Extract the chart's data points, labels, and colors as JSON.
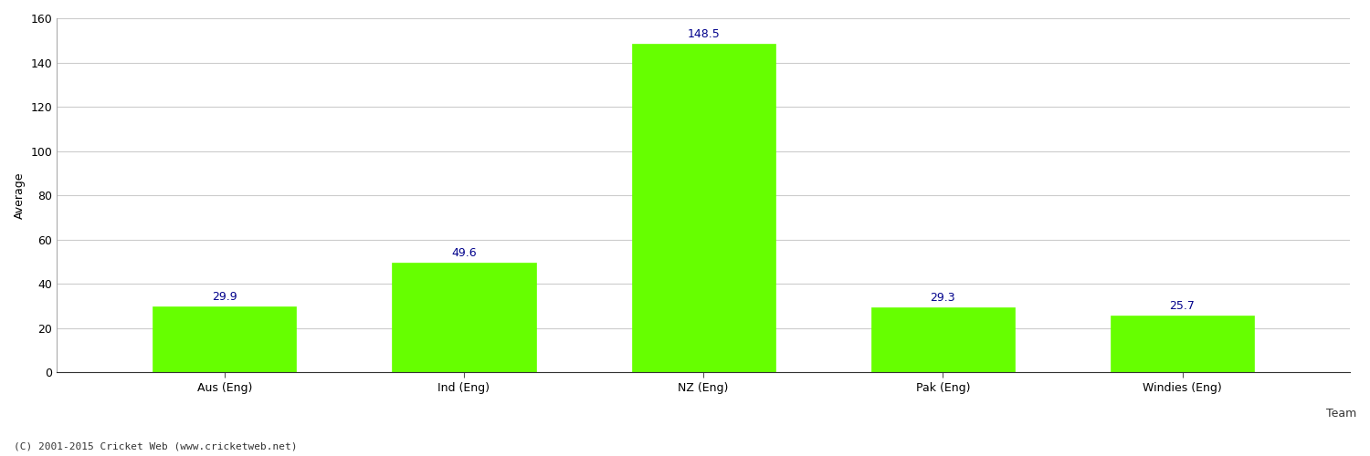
{
  "categories": [
    "Aus (Eng)",
    "Ind (Eng)",
    "NZ (Eng)",
    "Pak (Eng)",
    "Windies (Eng)"
  ],
  "values": [
    29.9,
    49.6,
    148.5,
    29.3,
    25.7
  ],
  "bar_color": "#66ff00",
  "bar_edge_color": "#66ff00",
  "label_color": "#00008B",
  "ylabel": "Average",
  "xlabel_label": "Team",
  "ylim": [
    0,
    160
  ],
  "yticks": [
    0,
    20,
    40,
    60,
    80,
    100,
    120,
    140,
    160
  ],
  "background_color": "#ffffff",
  "grid_color": "#cccccc",
  "footer_text": "(C) 2001-2015 Cricket Web (www.cricketweb.net)",
  "bar_width": 0.6,
  "label_fontsize": 9,
  "axis_fontsize": 9,
  "footer_fontsize": 8
}
